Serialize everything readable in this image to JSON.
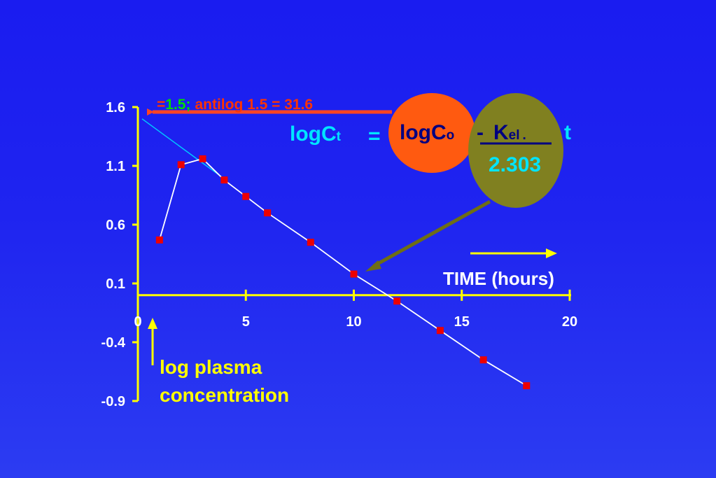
{
  "colors": {
    "axis": "#ffff00",
    "series_line": "#ffffff",
    "marker": "#ee0000",
    "extrapolation_line": "#00c8ff",
    "annotation_arrow": "#ff4422",
    "c0_circle": "#ff5a10",
    "kel_circle": "#808020",
    "kel_arrow": "#6e6e14",
    "equation_text": "#00e5ff",
    "equation_dark": "#000080",
    "annotation_green": "#00dd00",
    "annotation_red": "#ff3300"
  },
  "chart_data": {
    "type": "scatter",
    "xlabel": "TIME (hours)",
    "ylabel": "log plasma concentration",
    "xlim": [
      0,
      20
    ],
    "ylim": [
      -0.9,
      1.6
    ],
    "x_ticks": [
      "0",
      "5",
      "10",
      "15",
      "20"
    ],
    "y_ticks": [
      "1.6",
      "1.1",
      "0.6",
      "0.1",
      "-0.4",
      "-0.9"
    ],
    "grid": false,
    "series": [
      {
        "points": [
          {
            "x": 1,
            "y": 0.47
          },
          {
            "x": 2,
            "y": 1.11
          },
          {
            "x": 3,
            "y": 1.16
          },
          {
            "x": 4,
            "y": 0.98
          },
          {
            "x": 5,
            "y": 0.84
          },
          {
            "x": 6,
            "y": 0.7
          },
          {
            "x": 8,
            "y": 0.45
          },
          {
            "x": 10,
            "y": 0.18
          },
          {
            "x": 12,
            "y": -0.05
          },
          {
            "x": 14,
            "y": -0.3
          },
          {
            "x": 16,
            "y": -0.55
          },
          {
            "x": 18,
            "y": -0.77
          }
        ]
      }
    ],
    "extrapolation": {
      "x": [
        0,
        4
      ],
      "y": [
        1.5,
        0.99
      ]
    },
    "annotations": {
      "intercept_prefix": "=",
      "intercept_value": "1.5;",
      "antilog_text": "antilog 1.5 = 31.6",
      "equation_lhs": "logC",
      "equation_lhs_sub": "t",
      "equals": "=",
      "equation_c0": "logC",
      "equation_c0_sub": "o",
      "minus": "-",
      "kel": "K",
      "kel_sub": "el",
      "kel_dot": ".",
      "t": "t",
      "divisor": "2.303"
    }
  }
}
